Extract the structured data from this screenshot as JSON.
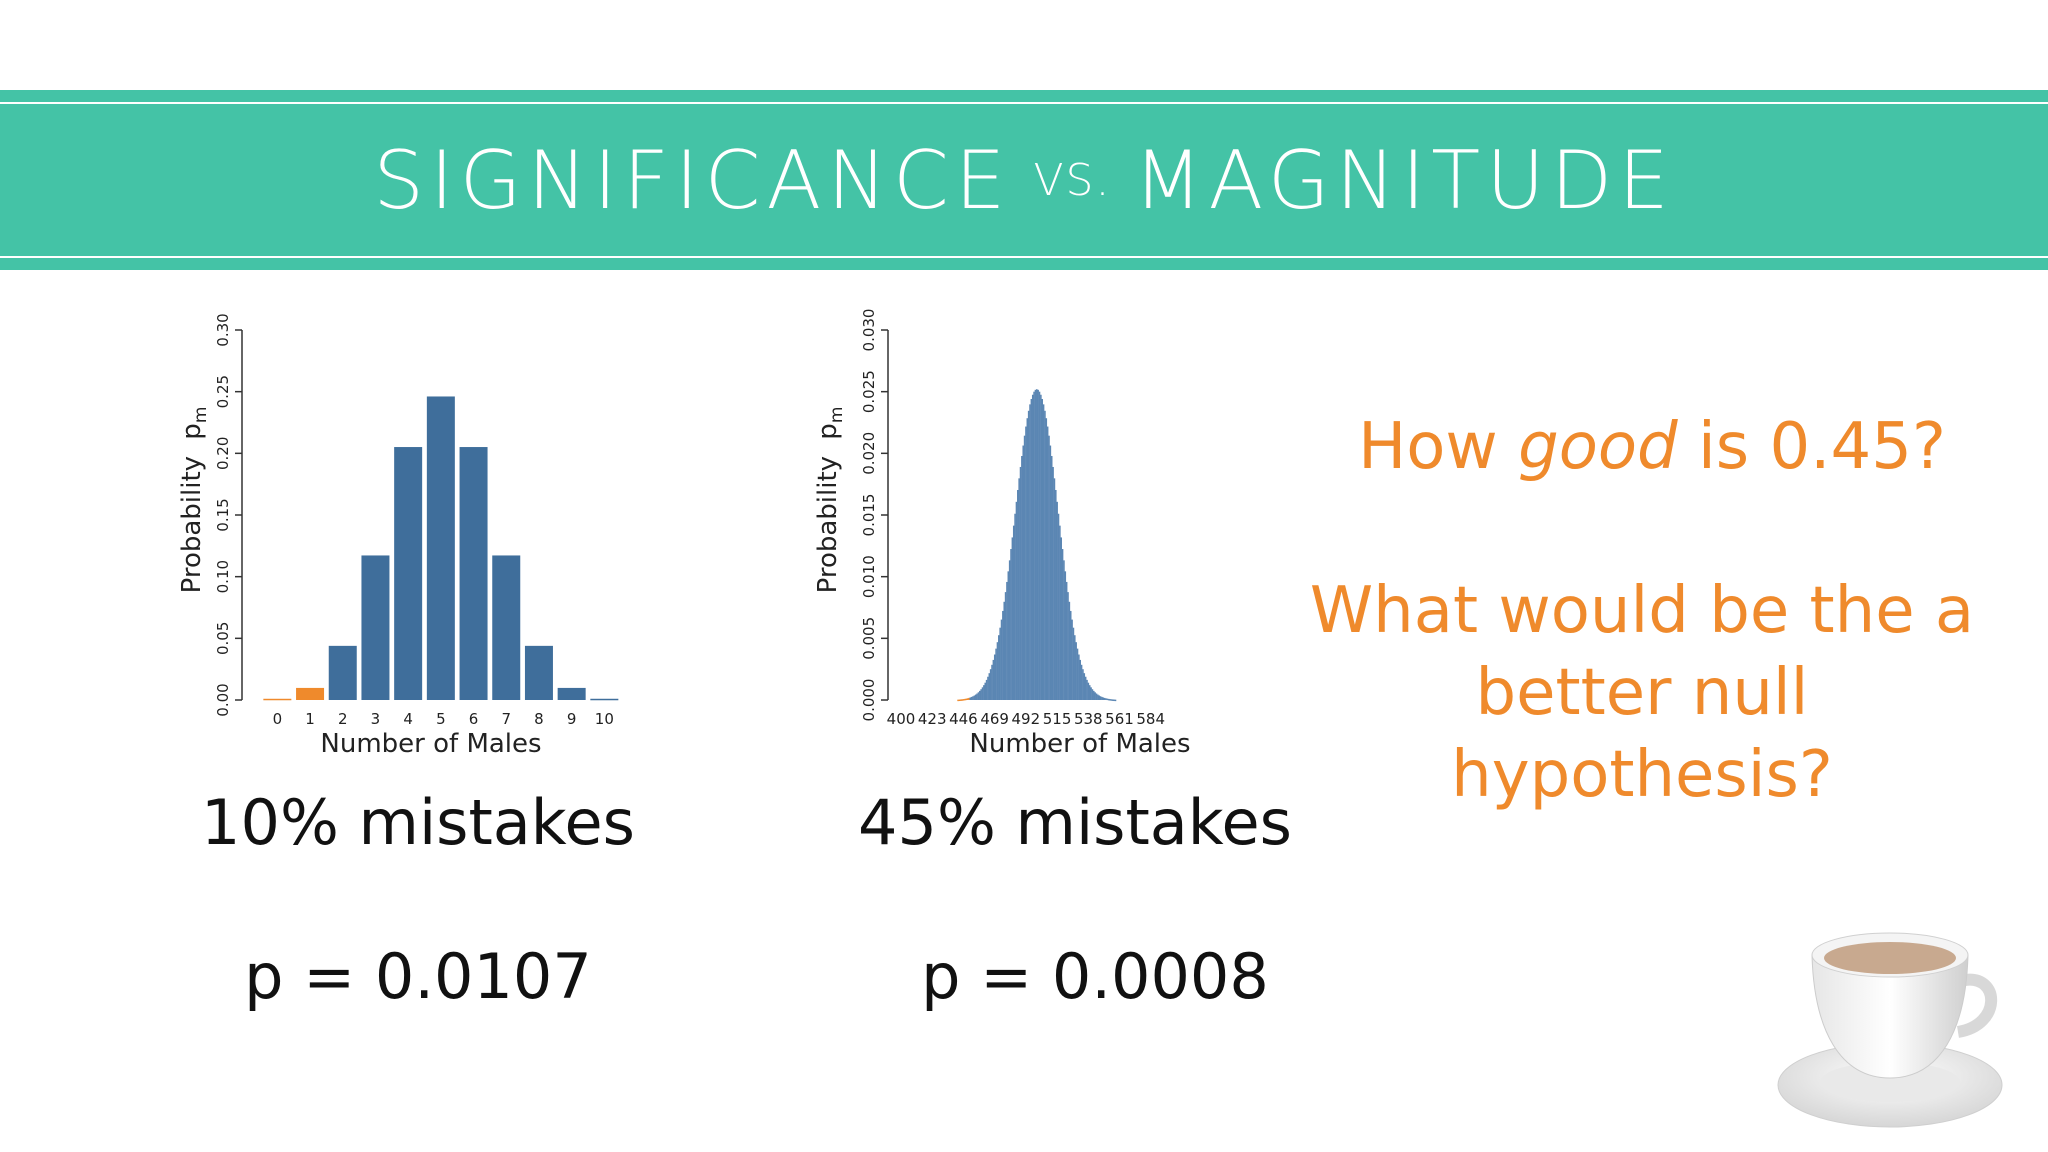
{
  "header": {
    "title_left": "SIGNIFICANCE",
    "title_mid": "VS.",
    "title_right": "MAGNITUDE"
  },
  "chart_data": [
    {
      "type": "bar",
      "xlabel": "Number of Males",
      "ylabel": "Probability",
      "ylabel_symbol": "p",
      "ylabel_subscript": "m",
      "ylim": [
        0,
        0.3
      ],
      "yticks": [
        "0.00",
        "0.05",
        "0.10",
        "0.15",
        "0.20",
        "0.25",
        "0.30"
      ],
      "categories": [
        "0",
        "1",
        "2",
        "3",
        "4",
        "5",
        "6",
        "7",
        "8",
        "9",
        "10"
      ],
      "values": [
        0.001,
        0.0098,
        0.0439,
        0.1172,
        0.2051,
        0.2461,
        0.2051,
        0.1172,
        0.0439,
        0.0098,
        0.001
      ],
      "highlight_categories": [
        "0",
        "1"
      ],
      "colors": {
        "bar": "#3f6e9b",
        "highlight": "#ef8a2c"
      }
    },
    {
      "type": "bar",
      "xlabel": "Number of Males",
      "ylabel": "Probability",
      "ylabel_symbol": "p",
      "ylabel_subscript": "m",
      "ylim": [
        0,
        0.03
      ],
      "xlim": [
        400,
        600
      ],
      "yticks": [
        "0.000",
        "0.005",
        "0.010",
        "0.015",
        "0.020",
        "0.025",
        "0.030"
      ],
      "xticks": [
        "400",
        "423",
        "446",
        "469",
        "492",
        "515",
        "538",
        "561",
        "584"
      ],
      "distribution": {
        "kind": "binomial",
        "n": 1000,
        "p": 0.5,
        "peak": 0.0252
      },
      "highlight_max_x": 450,
      "colors": {
        "bar": "#5b86b3",
        "highlight": "#ef8a2c"
      }
    }
  ],
  "captions": {
    "left_mistakes": "10% mistakes",
    "left_p": "p = 0.0107",
    "right_mistakes": "45% mistakes",
    "right_p": "p = 0.0008"
  },
  "questions": {
    "q1_pre": "How ",
    "q1_em": "good",
    "q1_post": " is 0.45?",
    "q2_line1": "What would be the a",
    "q2_line2": "better null hypothesis?"
  },
  "decor": {
    "cup_icon": "teacup-icon"
  }
}
